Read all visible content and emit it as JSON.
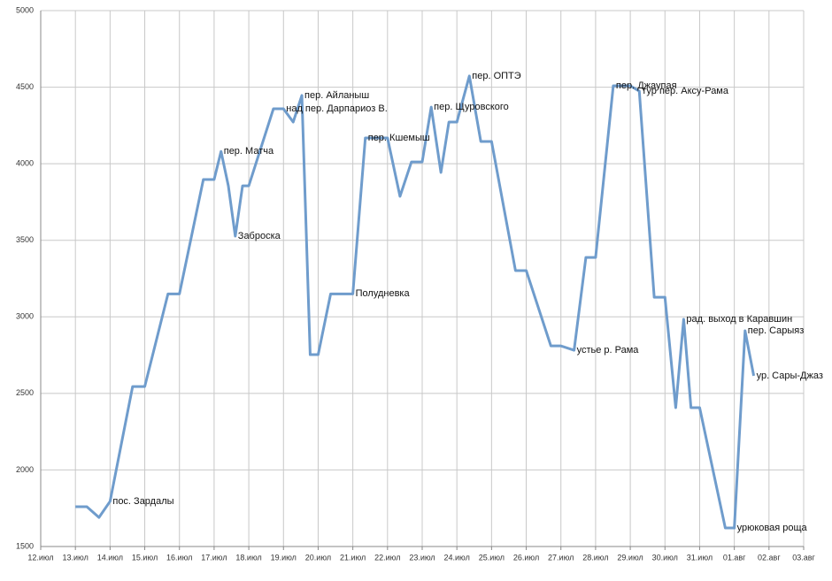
{
  "chart_data": {
    "type": "line",
    "x": [
      1.0,
      1.33,
      1.68,
      2.0,
      2.65,
      3.0,
      3.67,
      4.0,
      4.69,
      5.0,
      5.2,
      5.41,
      5.61,
      5.82,
      6.0,
      6.71,
      7.0,
      7.28,
      7.53,
      7.77,
      8.0,
      8.36,
      9.0,
      9.36,
      10.0,
      10.36,
      10.69,
      11.0,
      11.26,
      11.54,
      11.77,
      12.0,
      12.36,
      12.69,
      13.0,
      13.69,
      14.0,
      14.71,
      15.0,
      15.38,
      15.72,
      16.0,
      16.51,
      17.0,
      17.26,
      17.69,
      18.0,
      18.31,
      18.54,
      18.75,
      19.0,
      19.74,
      20.0,
      20.31,
      20.56
    ],
    "series": [
      {
        "color": "#6f9ccc",
        "values": [
          1760,
          1760,
          1690,
          1795,
          2545,
          2545,
          3150,
          3150,
          3897,
          3897,
          4080,
          3856,
          3527,
          3856,
          3856,
          4359,
          4359,
          4272,
          4446,
          2753,
          2753,
          3150,
          3150,
          4168,
          4168,
          3787,
          4012,
          4012,
          4370,
          3943,
          4272,
          4272,
          4573,
          4145,
          4145,
          3302,
          3302,
          2810,
          2810,
          2782,
          3388,
          3388,
          4509,
          4509,
          4474,
          3128,
          3128,
          2407,
          2984,
          2407,
          2407,
          1621,
          1621,
          2909,
          2615
        ],
        "point_labels": [
          null,
          null,
          null,
          "пос. Зардалы",
          null,
          null,
          null,
          null,
          null,
          null,
          "пер. Матча",
          null,
          "Заброска",
          null,
          null,
          null,
          "над пер. Дарпариоз В.",
          null,
          "пер. Айланыш",
          null,
          null,
          null,
          "Полудневка",
          "пер. Кшемыш",
          null,
          null,
          null,
          null,
          "пер. Щуровского",
          null,
          null,
          null,
          "пер. ОПТЭ",
          null,
          null,
          null,
          null,
          null,
          null,
          "устье р. Рама",
          null,
          null,
          "пер. Джаупая",
          null,
          "тур пер. Аксу-Рама",
          null,
          null,
          null,
          "рад. выход в Каравшин",
          null,
          null,
          null,
          "урюковая роща",
          "пер. Сарыяз",
          "ур. Сары-Джаз"
        ]
      }
    ],
    "xlim": [
      0,
      22
    ],
    "xticks": [
      {
        "value": 0,
        "label": "12.июл"
      },
      {
        "value": 1,
        "label": "13.июл"
      },
      {
        "value": 2,
        "label": "14.июл"
      },
      {
        "value": 3,
        "label": "15.июл"
      },
      {
        "value": 4,
        "label": "16.июл"
      },
      {
        "value": 5,
        "label": "17.июл"
      },
      {
        "value": 6,
        "label": "18.июл"
      },
      {
        "value": 7,
        "label": "19.июл"
      },
      {
        "value": 8,
        "label": "20.июл"
      },
      {
        "value": 9,
        "label": "21.июл"
      },
      {
        "value": 10,
        "label": "22.июл"
      },
      {
        "value": 11,
        "label": "23.июл"
      },
      {
        "value": 12,
        "label": "24.июл"
      },
      {
        "value": 13,
        "label": "25.июл"
      },
      {
        "value": 14,
        "label": "26.июл"
      },
      {
        "value": 15,
        "label": "27.июл"
      },
      {
        "value": 16,
        "label": "28.июл"
      },
      {
        "value": 17,
        "label": "29.июл"
      },
      {
        "value": 18,
        "label": "30.июл"
      },
      {
        "value": 19,
        "label": "31.июл"
      },
      {
        "value": 20,
        "label": "01.авг"
      },
      {
        "value": 21,
        "label": "02.авг"
      },
      {
        "value": 22,
        "label": "03.авг"
      }
    ],
    "ylim": [
      1500,
      5000
    ],
    "yticks": [
      1500,
      2000,
      2500,
      3000,
      3500,
      4000,
      4500,
      5000
    ],
    "grid": true
  }
}
